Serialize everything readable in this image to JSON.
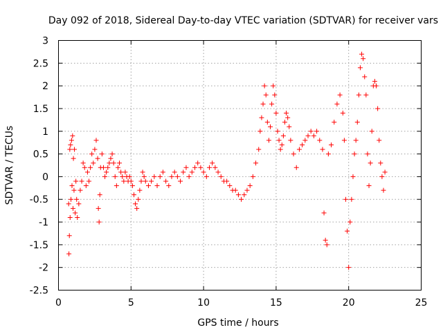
{
  "chart_data": {
    "type": "scatter",
    "title": "Day 092 of 2018, Sidereal Day-to-day VTEC variation (SDTVAR) for receiver vars",
    "xlabel": "GPS time / hours",
    "ylabel": "SDTVAR / TECUs",
    "xlim": [
      0,
      25
    ],
    "ylim": [
      -2.5,
      3
    ],
    "xticks": [
      0,
      5,
      10,
      15,
      20,
      25
    ],
    "xtick_labels": [
      "0",
      "5",
      "10",
      "15",
      "20",
      "25"
    ],
    "yticks": [
      -2.5,
      -2,
      -1.5,
      -1,
      -0.5,
      0,
      0.5,
      1,
      1.5,
      2,
      2.5,
      3
    ],
    "ytick_labels": [
      "-2.5",
      "-2",
      "-1.5",
      "-1",
      "-0.5",
      "0",
      "0.5",
      "1",
      "1.5",
      "2",
      "2.5",
      "3"
    ],
    "grid": true,
    "marker": "plus",
    "color": "#ff0000",
    "series": [
      {
        "name": "vars",
        "points": [
          [
            0.7,
            -0.6
          ],
          [
            0.72,
            -1.7
          ],
          [
            0.75,
            -1.3
          ],
          [
            0.78,
            0.6
          ],
          [
            0.8,
            -0.9
          ],
          [
            0.83,
            0.7
          ],
          [
            0.86,
            -0.5
          ],
          [
            0.9,
            0.8
          ],
          [
            0.93,
            -0.2
          ],
          [
            0.97,
            0.9
          ],
          [
            1.0,
            -0.7
          ],
          [
            1.03,
            0.4
          ],
          [
            1.07,
            -0.3
          ],
          [
            1.1,
            0.6
          ],
          [
            1.15,
            -0.8
          ],
          [
            1.2,
            -0.1
          ],
          [
            1.25,
            -0.5
          ],
          [
            1.3,
            -0.9
          ],
          [
            1.4,
            -0.6
          ],
          [
            1.5,
            -0.3
          ],
          [
            1.6,
            -0.1
          ],
          [
            1.7,
            0.3
          ],
          [
            1.8,
            0.2
          ],
          [
            1.9,
            -0.2
          ],
          [
            2.0,
            0.1
          ],
          [
            2.1,
            -0.1
          ],
          [
            2.2,
            0.2
          ],
          [
            2.3,
            0.5
          ],
          [
            2.4,
            0.3
          ],
          [
            2.5,
            0.6
          ],
          [
            2.6,
            0.8
          ],
          [
            2.7,
            0.4
          ],
          [
            2.75,
            -0.7
          ],
          [
            2.8,
            -1.0
          ],
          [
            2.85,
            -0.4
          ],
          [
            2.9,
            0.2
          ],
          [
            3.0,
            0.5
          ],
          [
            3.1,
            0.2
          ],
          [
            3.2,
            0.0
          ],
          [
            3.3,
            0.1
          ],
          [
            3.4,
            0.2
          ],
          [
            3.5,
            0.3
          ],
          [
            3.6,
            0.4
          ],
          [
            3.7,
            0.5
          ],
          [
            3.8,
            0.3
          ],
          [
            3.9,
            0.0
          ],
          [
            4.0,
            -0.2
          ],
          [
            4.1,
            0.2
          ],
          [
            4.2,
            0.3
          ],
          [
            4.3,
            0.1
          ],
          [
            4.4,
            0.0
          ],
          [
            4.5,
            -0.1
          ],
          [
            4.6,
            0.1
          ],
          [
            4.7,
            0.0
          ],
          [
            4.8,
            -0.1
          ],
          [
            4.9,
            0.0
          ],
          [
            5.0,
            -0.1
          ],
          [
            5.1,
            -0.2
          ],
          [
            5.2,
            -0.4
          ],
          [
            5.3,
            -0.6
          ],
          [
            5.4,
            -0.7
          ],
          [
            5.5,
            -0.5
          ],
          [
            5.6,
            -0.3
          ],
          [
            5.7,
            -0.1
          ],
          [
            5.8,
            0.1
          ],
          [
            5.9,
            0.0
          ],
          [
            6.0,
            -0.1
          ],
          [
            6.2,
            -0.2
          ],
          [
            6.4,
            -0.1
          ],
          [
            6.6,
            0.0
          ],
          [
            6.8,
            -0.2
          ],
          [
            7.0,
            0.0
          ],
          [
            7.2,
            0.1
          ],
          [
            7.4,
            -0.1
          ],
          [
            7.6,
            -0.2
          ],
          [
            7.8,
            0.0
          ],
          [
            8.0,
            0.1
          ],
          [
            8.2,
            0.0
          ],
          [
            8.4,
            -0.1
          ],
          [
            8.6,
            0.1
          ],
          [
            8.8,
            0.2
          ],
          [
            9.0,
            0.0
          ],
          [
            9.2,
            0.1
          ],
          [
            9.4,
            0.2
          ],
          [
            9.6,
            0.3
          ],
          [
            9.8,
            0.2
          ],
          [
            10.0,
            0.1
          ],
          [
            10.2,
            0.0
          ],
          [
            10.4,
            0.2
          ],
          [
            10.6,
            0.3
          ],
          [
            10.8,
            0.2
          ],
          [
            11.0,
            0.1
          ],
          [
            11.2,
            0.0
          ],
          [
            11.4,
            -0.1
          ],
          [
            11.6,
            -0.1
          ],
          [
            11.8,
            -0.2
          ],
          [
            12.0,
            -0.3
          ],
          [
            12.2,
            -0.3
          ],
          [
            12.4,
            -0.4
          ],
          [
            12.6,
            -0.5
          ],
          [
            12.8,
            -0.4
          ],
          [
            13.0,
            -0.3
          ],
          [
            13.2,
            -0.2
          ],
          [
            13.4,
            0.0
          ],
          [
            13.6,
            0.3
          ],
          [
            13.8,
            0.6
          ],
          [
            13.9,
            1.0
          ],
          [
            14.0,
            1.3
          ],
          [
            14.1,
            1.6
          ],
          [
            14.2,
            2.0
          ],
          [
            14.3,
            1.8
          ],
          [
            14.4,
            1.2
          ],
          [
            14.5,
            0.8
          ],
          [
            14.6,
            1.1
          ],
          [
            14.7,
            1.6
          ],
          [
            14.8,
            2.0
          ],
          [
            14.9,
            1.8
          ],
          [
            15.0,
            1.4
          ],
          [
            15.1,
            1.0
          ],
          [
            15.2,
            0.8
          ],
          [
            15.3,
            0.6
          ],
          [
            15.4,
            0.7
          ],
          [
            15.5,
            0.9
          ],
          [
            15.6,
            1.2
          ],
          [
            15.7,
            1.4
          ],
          [
            15.8,
            1.3
          ],
          [
            15.9,
            1.1
          ],
          [
            16.0,
            0.8
          ],
          [
            16.2,
            0.5
          ],
          [
            16.4,
            0.2
          ],
          [
            16.6,
            0.6
          ],
          [
            16.8,
            0.7
          ],
          [
            17.0,
            0.8
          ],
          [
            17.2,
            0.9
          ],
          [
            17.4,
            1.0
          ],
          [
            17.6,
            0.9
          ],
          [
            17.8,
            1.0
          ],
          [
            18.0,
            0.8
          ],
          [
            18.2,
            0.6
          ],
          [
            18.3,
            -0.8
          ],
          [
            18.4,
            -1.4
          ],
          [
            18.5,
            -1.5
          ],
          [
            18.6,
            0.5
          ],
          [
            18.8,
            0.7
          ],
          [
            19.0,
            1.2
          ],
          [
            19.2,
            1.6
          ],
          [
            19.4,
            1.8
          ],
          [
            19.6,
            1.4
          ],
          [
            19.7,
            0.8
          ],
          [
            19.8,
            -0.5
          ],
          [
            19.9,
            -1.2
          ],
          [
            20.0,
            -2.0
          ],
          [
            20.1,
            -1.0
          ],
          [
            20.2,
            -0.5
          ],
          [
            20.3,
            0.0
          ],
          [
            20.4,
            0.5
          ],
          [
            20.5,
            0.8
          ],
          [
            20.6,
            1.2
          ],
          [
            20.7,
            1.8
          ],
          [
            20.8,
            2.4
          ],
          [
            20.9,
            2.7
          ],
          [
            21.0,
            2.6
          ],
          [
            21.1,
            2.2
          ],
          [
            21.2,
            1.8
          ],
          [
            21.3,
            0.5
          ],
          [
            21.4,
            -0.2
          ],
          [
            21.5,
            0.3
          ],
          [
            21.6,
            1.0
          ],
          [
            21.7,
            2.0
          ],
          [
            21.8,
            2.1
          ],
          [
            21.9,
            2.0
          ],
          [
            22.0,
            1.5
          ],
          [
            22.1,
            0.8
          ],
          [
            22.2,
            0.3
          ],
          [
            22.3,
            0.0
          ],
          [
            22.4,
            -0.3
          ],
          [
            22.5,
            0.1
          ]
        ]
      }
    ]
  }
}
